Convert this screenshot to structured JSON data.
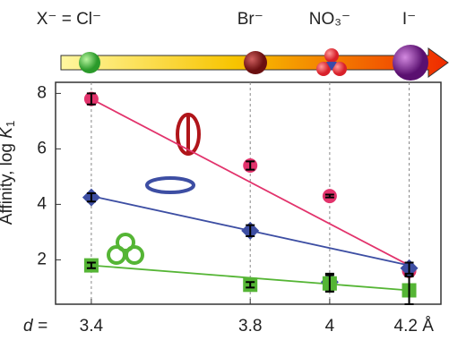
{
  "chart_data": {
    "type": "scatter",
    "anions": [
      "X⁻ = Cl⁻",
      "Br⁻",
      "NO₃⁻",
      "I⁻"
    ],
    "x_label": "d =",
    "y_label": {
      "text": "Affinity, log ",
      "var": "K",
      "sub": "1"
    },
    "x": [
      3.4,
      3.8,
      4.0,
      4.2
    ],
    "xlim": [
      3.31,
      4.28
    ],
    "xticks": [
      3.4,
      3.8,
      4.0,
      {
        "value": 4.2,
        "label": "4.2 Å"
      }
    ],
    "ylim": [
      0.4,
      8.4
    ],
    "yticks": [
      2,
      4,
      6,
      8
    ],
    "grid": true,
    "series": [
      {
        "color": "#e2336c",
        "marker": "circle",
        "values": [
          7.8,
          5.4,
          4.3,
          1.6
        ],
        "errors": [
          0.2,
          0.15,
          0.05,
          0.15
        ],
        "fit": [
          7.8,
          1.8
        ]
      },
      {
        "color": "#3d4ea3",
        "marker": "diamond",
        "values": [
          4.25,
          3.05,
          1.2,
          1.7
        ],
        "errors": [
          0.15,
          0.2,
          0.3,
          0.2
        ],
        "fit": [
          4.3,
          1.8
        ]
      },
      {
        "color": "#55b535",
        "marker": "square",
        "values": [
          1.8,
          1.1,
          1.15,
          0.9
        ],
        "errors": [
          0.1,
          0.1,
          0.3,
          0.5
        ],
        "fit": [
          1.8,
          0.9
        ]
      }
    ]
  }
}
